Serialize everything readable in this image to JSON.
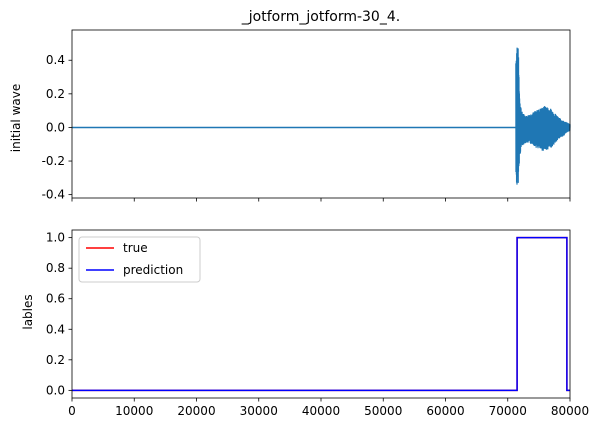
{
  "chart_data": [
    {
      "type": "line",
      "title": "_jotform_jotform-30_4.",
      "xlabel": "",
      "ylabel": "initial wave",
      "xlim": [
        0,
        80000
      ],
      "ylim": [
        -0.42,
        0.58
      ],
      "yticks": [
        "-0.4",
        "-0.2",
        "0.0",
        "0.2",
        "0.4"
      ],
      "yticks_values": [
        -0.4,
        -0.2,
        0.0,
        0.2,
        0.4
      ],
      "xticks_values": [
        0,
        10000,
        20000,
        30000,
        40000,
        50000,
        60000,
        70000,
        80000
      ],
      "xtick_labels_shown": false,
      "grid": false,
      "series": [
        {
          "color": "#1f77b4",
          "baseline": {
            "x": [
              0,
              71300
            ],
            "y": [
              0.0,
              0.0
            ]
          },
          "burst_envelope": {
            "x": [
              71300,
              71500,
              71700,
              71900,
              72200,
              72600,
              73000,
              73500,
              74000,
              74500,
              75000,
              75500,
              76000,
              76500,
              77000,
              77500,
              78000,
              78500,
              79000,
              79500,
              80000
            ],
            "upper": [
              0.45,
              0.53,
              0.47,
              0.2,
              0.1,
              0.08,
              0.07,
              0.08,
              0.09,
              0.1,
              0.11,
              0.12,
              0.13,
              0.12,
              0.11,
              0.09,
              0.07,
              0.05,
              0.04,
              0.03,
              0.02
            ],
            "lower": [
              -0.3,
              -0.37,
              -0.33,
              -0.18,
              -0.12,
              -0.1,
              -0.09,
              -0.1,
              -0.1,
              -0.12,
              -0.13,
              -0.14,
              -0.14,
              -0.13,
              -0.12,
              -0.1,
              -0.08,
              -0.06,
              -0.05,
              -0.03,
              -0.02
            ]
          }
        }
      ]
    },
    {
      "type": "line",
      "title": "",
      "xlabel": "",
      "ylabel": "lables",
      "xlim": [
        0,
        80000
      ],
      "ylim": [
        -0.05,
        1.05
      ],
      "yticks": [
        "0.0",
        "0.2",
        "0.4",
        "0.6",
        "0.8",
        "1.0"
      ],
      "yticks_values": [
        0.0,
        0.2,
        0.4,
        0.6,
        0.8,
        1.0
      ],
      "xticks": [
        "0",
        "10000",
        "20000",
        "30000",
        "40000",
        "50000",
        "60000",
        "70000",
        "80000"
      ],
      "xticks_values": [
        0,
        10000,
        20000,
        30000,
        40000,
        50000,
        60000,
        70000,
        80000
      ],
      "grid": false,
      "legend_position": "top-left",
      "series": [
        {
          "name": "true",
          "color": "#ff0000",
          "x": [
            0,
            71500,
            71500,
            79500,
            79500,
            80000
          ],
          "y": [
            0,
            0,
            1,
            1,
            0,
            0
          ]
        },
        {
          "name": "prediction",
          "color": "#0000ff",
          "x": [
            0,
            71500,
            71500,
            79500,
            79500,
            80000
          ],
          "y": [
            0,
            0,
            1,
            1,
            0,
            0
          ]
        }
      ]
    }
  ]
}
